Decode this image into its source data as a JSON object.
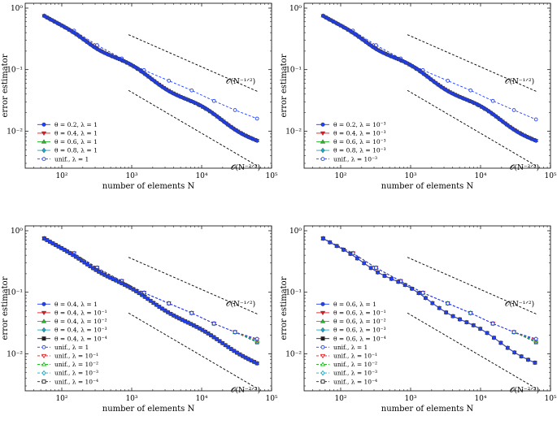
{
  "chart_data": [
    {
      "type": "line",
      "xscale": "log",
      "yscale": "log",
      "xlim": [
        30,
        100000
      ],
      "ylim": [
        0.0025,
        1.2
      ],
      "xlabel": "number of elements N",
      "ylabel": "error estimator",
      "x_ticks": [
        {
          "value": 100,
          "label": "10²"
        },
        {
          "value": 1000,
          "label": "10³"
        },
        {
          "value": 10000,
          "label": "10⁴"
        },
        {
          "value": 100000,
          "label": "10⁵"
        }
      ],
      "y_ticks": [
        {
          "value": 0.01,
          "label": "10⁻²"
        },
        {
          "value": 0.1,
          "label": "10⁻¹"
        },
        {
          "value": 1,
          "label": "10⁰"
        }
      ],
      "series": [
        {
          "name": "θ = 0.2, λ = 1",
          "color": "#1f3fff",
          "marker": "circle",
          "dashed": false,
          "n0": 56,
          "n1": 62000,
          "y0": 0.75,
          "slope": 0.6667,
          "count": 170,
          "wiggle": 0.035
        },
        {
          "name": "θ = 0.4, λ = 1",
          "color": "#e8191f",
          "marker": "triangle-down",
          "dashed": false,
          "n0": 56,
          "n1": 62000,
          "y0": 0.75,
          "slope": 0.6667,
          "count": 90,
          "wiggle": 0.03
        },
        {
          "name": "θ = 0.6, λ = 1",
          "color": "#22bb22",
          "marker": "triangle-up",
          "dashed": false,
          "n0": 56,
          "n1": 62000,
          "y0": 0.75,
          "slope": 0.6667,
          "count": 60,
          "wiggle": 0.03
        },
        {
          "name": "θ = 0.8, λ = 1",
          "color": "#17a9c9",
          "marker": "diamond",
          "dashed": false,
          "n0": 56,
          "n1": 62000,
          "y0": 0.75,
          "slope": 0.6667,
          "count": 45,
          "wiggle": 0.03
        },
        {
          "name": "unif., λ = 1",
          "color": "#1f3fff",
          "marker": "circle-open",
          "dashed": true,
          "x": [
            56,
            150,
            320,
            720,
            1500,
            3400,
            7200,
            15000,
            30000,
            62000
          ],
          "y": [
            0.75,
            0.43,
            0.25,
            0.152,
            0.098,
            0.066,
            0.046,
            0.031,
            0.022,
            0.016
          ]
        }
      ],
      "reference_lines": [
        {
          "label": "O(N^{-1/2})",
          "n_start": 900,
          "n_end": 65000,
          "y_start": 0.37,
          "slope": 0.5
        },
        {
          "label": "O(N^{-2/3})",
          "n_start": 900,
          "n_end": 65000,
          "y_start": 0.046,
          "slope": 0.6667
        }
      ],
      "annotations": [
        "𝒪(N⁻¹ᐟ²)",
        "𝒪(N⁻²ᐟ³)"
      ]
    },
    {
      "type": "line",
      "xscale": "log",
      "yscale": "log",
      "xlim": [
        30,
        100000
      ],
      "ylim": [
        0.0025,
        1.2
      ],
      "xlabel": "number of elements N",
      "ylabel": "error estimator",
      "x_ticks": [
        {
          "value": 100,
          "label": "10²"
        },
        {
          "value": 1000,
          "label": "10³"
        },
        {
          "value": 10000,
          "label": "10⁴"
        },
        {
          "value": 100000,
          "label": "10⁵"
        }
      ],
      "y_ticks": [
        {
          "value": 0.01,
          "label": "10⁻²"
        },
        {
          "value": 0.1,
          "label": "10⁻¹"
        },
        {
          "value": 1,
          "label": "10⁰"
        }
      ],
      "series": [
        {
          "name": "θ = 0.2, λ = 10⁻³",
          "color": "#1f3fff",
          "marker": "circle",
          "dashed": false,
          "n0": 56,
          "n1": 62000,
          "y0": 0.75,
          "slope": 0.6667,
          "count": 170,
          "wiggle": 0.035
        },
        {
          "name": "θ = 0.4, λ = 10⁻³",
          "color": "#e8191f",
          "marker": "triangle-down",
          "dashed": false,
          "n0": 56,
          "n1": 62000,
          "y0": 0.75,
          "slope": 0.6667,
          "count": 90,
          "wiggle": 0.03
        },
        {
          "name": "θ = 0.6, λ = 10⁻³",
          "color": "#22bb22",
          "marker": "triangle-up",
          "dashed": false,
          "n0": 56,
          "n1": 62000,
          "y0": 0.75,
          "slope": 0.6667,
          "count": 60,
          "wiggle": 0.03
        },
        {
          "name": "θ = 0.8, λ = 10⁻³",
          "color": "#17a9c9",
          "marker": "diamond",
          "dashed": false,
          "n0": 56,
          "n1": 62000,
          "y0": 0.75,
          "slope": 0.6667,
          "count": 45,
          "wiggle": 0.03
        },
        {
          "name": "unif., λ = 10⁻³",
          "color": "#1f3fff",
          "marker": "circle-open",
          "dashed": true,
          "x": [
            56,
            150,
            320,
            720,
            1500,
            3400,
            7200,
            15000,
            30000,
            62000
          ],
          "y": [
            0.75,
            0.43,
            0.25,
            0.152,
            0.098,
            0.066,
            0.046,
            0.031,
            0.022,
            0.0155
          ]
        }
      ],
      "reference_lines": [
        {
          "label": "O(N^{-1/2})",
          "n_start": 900,
          "n_end": 65000,
          "y_start": 0.37,
          "slope": 0.5
        },
        {
          "label": "O(N^{-2/3})",
          "n_start": 900,
          "n_end": 65000,
          "y_start": 0.046,
          "slope": 0.6667
        }
      ],
      "annotations": [
        "𝒪(N⁻¹ᐟ²)",
        "𝒪(N⁻²ᐟ³)"
      ]
    },
    {
      "type": "line",
      "xscale": "log",
      "yscale": "log",
      "xlim": [
        30,
        100000
      ],
      "ylim": [
        0.0025,
        1.2
      ],
      "xlabel": "number of elements N",
      "ylabel": "error estimator",
      "x_ticks": [
        {
          "value": 100,
          "label": "10²"
        },
        {
          "value": 1000,
          "label": "10³"
        },
        {
          "value": 10000,
          "label": "10⁴"
        },
        {
          "value": 100000,
          "label": "10⁵"
        }
      ],
      "y_ticks": [
        {
          "value": 0.01,
          "label": "10⁻²"
        },
        {
          "value": 0.1,
          "label": "10⁻¹"
        },
        {
          "value": 1,
          "label": "10⁰"
        }
      ],
      "series": [
        {
          "name": "θ = 0.4, λ = 1",
          "color": "#1f3fff",
          "marker": "circle",
          "dashed": false,
          "n0": 56,
          "n1": 62000,
          "y0": 0.75,
          "slope": 0.6667,
          "count": 75,
          "wiggle": 0.02
        },
        {
          "name": "θ = 0.4, λ = 10⁻¹",
          "color": "#e8191f",
          "marker": "triangle-down",
          "dashed": false,
          "n0": 56,
          "n1": 62000,
          "y0": 0.75,
          "slope": 0.6667,
          "count": 75,
          "wiggle": 0.02
        },
        {
          "name": "θ = 0.4, λ = 10⁻²",
          "color": "#22bb22",
          "marker": "triangle-up",
          "dashed": false,
          "n0": 56,
          "n1": 62000,
          "y0": 0.75,
          "slope": 0.6667,
          "count": 75,
          "wiggle": 0.02
        },
        {
          "name": "θ = 0.4, λ = 10⁻³",
          "color": "#17a9c9",
          "marker": "diamond",
          "dashed": false,
          "n0": 56,
          "n1": 62000,
          "y0": 0.75,
          "slope": 0.6667,
          "count": 75,
          "wiggle": 0.02
        },
        {
          "name": "θ = 0.4, λ = 10⁻⁴",
          "color": "#222222",
          "marker": "square",
          "dashed": false,
          "n0": 56,
          "n1": 62000,
          "y0": 0.75,
          "slope": 0.6667,
          "count": 75,
          "wiggle": 0.02
        },
        {
          "name": "unif., λ = 1",
          "color": "#1f3fff",
          "marker": "circle-open",
          "dashed": true,
          "x": [
            56,
            150,
            320,
            720,
            1500,
            3400,
            7200,
            15000,
            30000,
            62000
          ],
          "y": [
            0.75,
            0.43,
            0.25,
            0.152,
            0.098,
            0.066,
            0.046,
            0.031,
            0.0225,
            0.0175
          ]
        },
        {
          "name": "unif., λ = 10⁻¹",
          "color": "#e8191f",
          "marker": "triangle-down-open",
          "dashed": true,
          "x": [
            56,
            150,
            320,
            720,
            1500,
            3400,
            7200,
            15000,
            30000,
            62000
          ],
          "y": [
            0.75,
            0.43,
            0.25,
            0.152,
            0.098,
            0.066,
            0.046,
            0.031,
            0.0225,
            0.0168
          ]
        },
        {
          "name": "unif., λ = 10⁻²",
          "color": "#22bb22",
          "marker": "triangle-up-open",
          "dashed": true,
          "x": [
            56,
            150,
            320,
            720,
            1500,
            3400,
            7200,
            15000,
            30000,
            62000
          ],
          "y": [
            0.75,
            0.43,
            0.25,
            0.152,
            0.098,
            0.066,
            0.046,
            0.031,
            0.0225,
            0.0163
          ]
        },
        {
          "name": "unif., λ = 10⁻³",
          "color": "#17a9c9",
          "marker": "diamond-open",
          "dashed": true,
          "x": [
            56,
            150,
            320,
            720,
            1500,
            3400,
            7200,
            15000,
            30000,
            62000
          ],
          "y": [
            0.75,
            0.43,
            0.25,
            0.152,
            0.098,
            0.066,
            0.046,
            0.031,
            0.0225,
            0.0158
          ]
        },
        {
          "name": "unif., λ = 10⁻⁴",
          "color": "#222222",
          "marker": "square-open",
          "dashed": true,
          "x": [
            56,
            150,
            320,
            720,
            1500,
            3400,
            7200,
            15000,
            30000,
            62000
          ],
          "y": [
            0.75,
            0.43,
            0.25,
            0.152,
            0.098,
            0.066,
            0.046,
            0.031,
            0.0225,
            0.0154
          ]
        }
      ],
      "reference_lines": [
        {
          "label": "O(N^{-1/2})",
          "n_start": 900,
          "n_end": 65000,
          "y_start": 0.37,
          "slope": 0.5
        },
        {
          "label": "O(N^{-2/3})",
          "n_start": 900,
          "n_end": 65000,
          "y_start": 0.046,
          "slope": 0.6667
        }
      ],
      "annotations": [
        "𝒪(N⁻¹ᐟ²)",
        "𝒪(N⁻²ᐟ³)"
      ]
    },
    {
      "type": "line",
      "xscale": "log",
      "yscale": "log",
      "xlim": [
        30,
        100000
      ],
      "ylim": [
        0.0025,
        1.2
      ],
      "xlabel": "number of elements N",
      "ylabel": "error estimator",
      "x_ticks": [
        {
          "value": 100,
          "label": "10²"
        },
        {
          "value": 1000,
          "label": "10³"
        },
        {
          "value": 10000,
          "label": "10⁴"
        },
        {
          "value": 100000,
          "label": "10⁵"
        }
      ],
      "y_ticks": [
        {
          "value": 0.01,
          "label": "10⁻²"
        },
        {
          "value": 0.1,
          "label": "10⁻¹"
        },
        {
          "value": 1,
          "label": "10⁰"
        }
      ],
      "series": [
        {
          "name": "θ = 0.6, λ = 1",
          "color": "#1f3fff",
          "marker": "circle",
          "dashed": false,
          "n0": 56,
          "n1": 60000,
          "y0": 0.75,
          "slope": 0.6667,
          "count": 32,
          "wiggle": 0.03
        },
        {
          "name": "θ = 0.6, λ = 10⁻¹",
          "color": "#e8191f",
          "marker": "triangle-down",
          "dashed": false,
          "n0": 56,
          "n1": 60000,
          "y0": 0.75,
          "slope": 0.6667,
          "count": 32,
          "wiggle": 0.03
        },
        {
          "name": "θ = 0.6, λ = 10⁻²",
          "color": "#22bb22",
          "marker": "triangle-up",
          "dashed": false,
          "n0": 56,
          "n1": 60000,
          "y0": 0.75,
          "slope": 0.6667,
          "count": 32,
          "wiggle": 0.03
        },
        {
          "name": "θ = 0.6, λ = 10⁻³",
          "color": "#17a9c9",
          "marker": "diamond",
          "dashed": false,
          "n0": 56,
          "n1": 60000,
          "y0": 0.75,
          "slope": 0.6667,
          "count": 32,
          "wiggle": 0.03
        },
        {
          "name": "θ = 0.6, λ = 10⁻⁴",
          "color": "#222222",
          "marker": "square",
          "dashed": false,
          "n0": 56,
          "n1": 60000,
          "y0": 0.75,
          "slope": 0.6667,
          "count": 32,
          "wiggle": 0.03
        },
        {
          "name": "unif., λ = 1",
          "color": "#1f3fff",
          "marker": "circle-open",
          "dashed": true,
          "x": [
            56,
            150,
            320,
            720,
            1500,
            3400,
            7200,
            15000,
            30000,
            62000
          ],
          "y": [
            0.75,
            0.43,
            0.25,
            0.152,
            0.098,
            0.066,
            0.046,
            0.031,
            0.0225,
            0.0175
          ]
        },
        {
          "name": "unif., λ = 10⁻¹",
          "color": "#e8191f",
          "marker": "triangle-down-open",
          "dashed": true,
          "x": [
            56,
            150,
            320,
            720,
            1500,
            3400,
            7200,
            15000,
            30000,
            62000
          ],
          "y": [
            0.75,
            0.43,
            0.25,
            0.152,
            0.098,
            0.066,
            0.046,
            0.031,
            0.0225,
            0.0168
          ]
        },
        {
          "name": "unif., λ = 10⁻²",
          "color": "#22bb22",
          "marker": "triangle-up-open",
          "dashed": true,
          "x": [
            56,
            150,
            320,
            720,
            1500,
            3400,
            7200,
            15000,
            30000,
            62000
          ],
          "y": [
            0.75,
            0.43,
            0.25,
            0.152,
            0.098,
            0.066,
            0.046,
            0.031,
            0.0225,
            0.0163
          ]
        },
        {
          "name": "unif., λ = 10⁻³",
          "color": "#17a9c9",
          "marker": "diamond-open",
          "dashed": true,
          "x": [
            56,
            150,
            320,
            720,
            1500,
            3400,
            7200,
            15000,
            30000,
            62000
          ],
          "y": [
            0.75,
            0.43,
            0.25,
            0.152,
            0.098,
            0.066,
            0.046,
            0.031,
            0.0225,
            0.0158
          ]
        },
        {
          "name": "unif., λ = 10⁻⁴",
          "color": "#222222",
          "marker": "square-open",
          "dashed": true,
          "x": [
            56,
            150,
            320,
            720,
            1500,
            3400,
            7200,
            15000,
            30000,
            62000
          ],
          "y": [
            0.75,
            0.43,
            0.25,
            0.152,
            0.098,
            0.066,
            0.046,
            0.031,
            0.0225,
            0.0154
          ]
        }
      ],
      "reference_lines": [
        {
          "label": "O(N^{-1/2})",
          "n_start": 900,
          "n_end": 65000,
          "y_start": 0.37,
          "slope": 0.5
        },
        {
          "label": "O(N^{-2/3})",
          "n_start": 900,
          "n_end": 65000,
          "y_start": 0.046,
          "slope": 0.6667
        }
      ],
      "annotations": [
        "𝒪(N⁻¹ᐟ²)",
        "𝒪(N⁻²ᐟ³)"
      ]
    }
  ]
}
